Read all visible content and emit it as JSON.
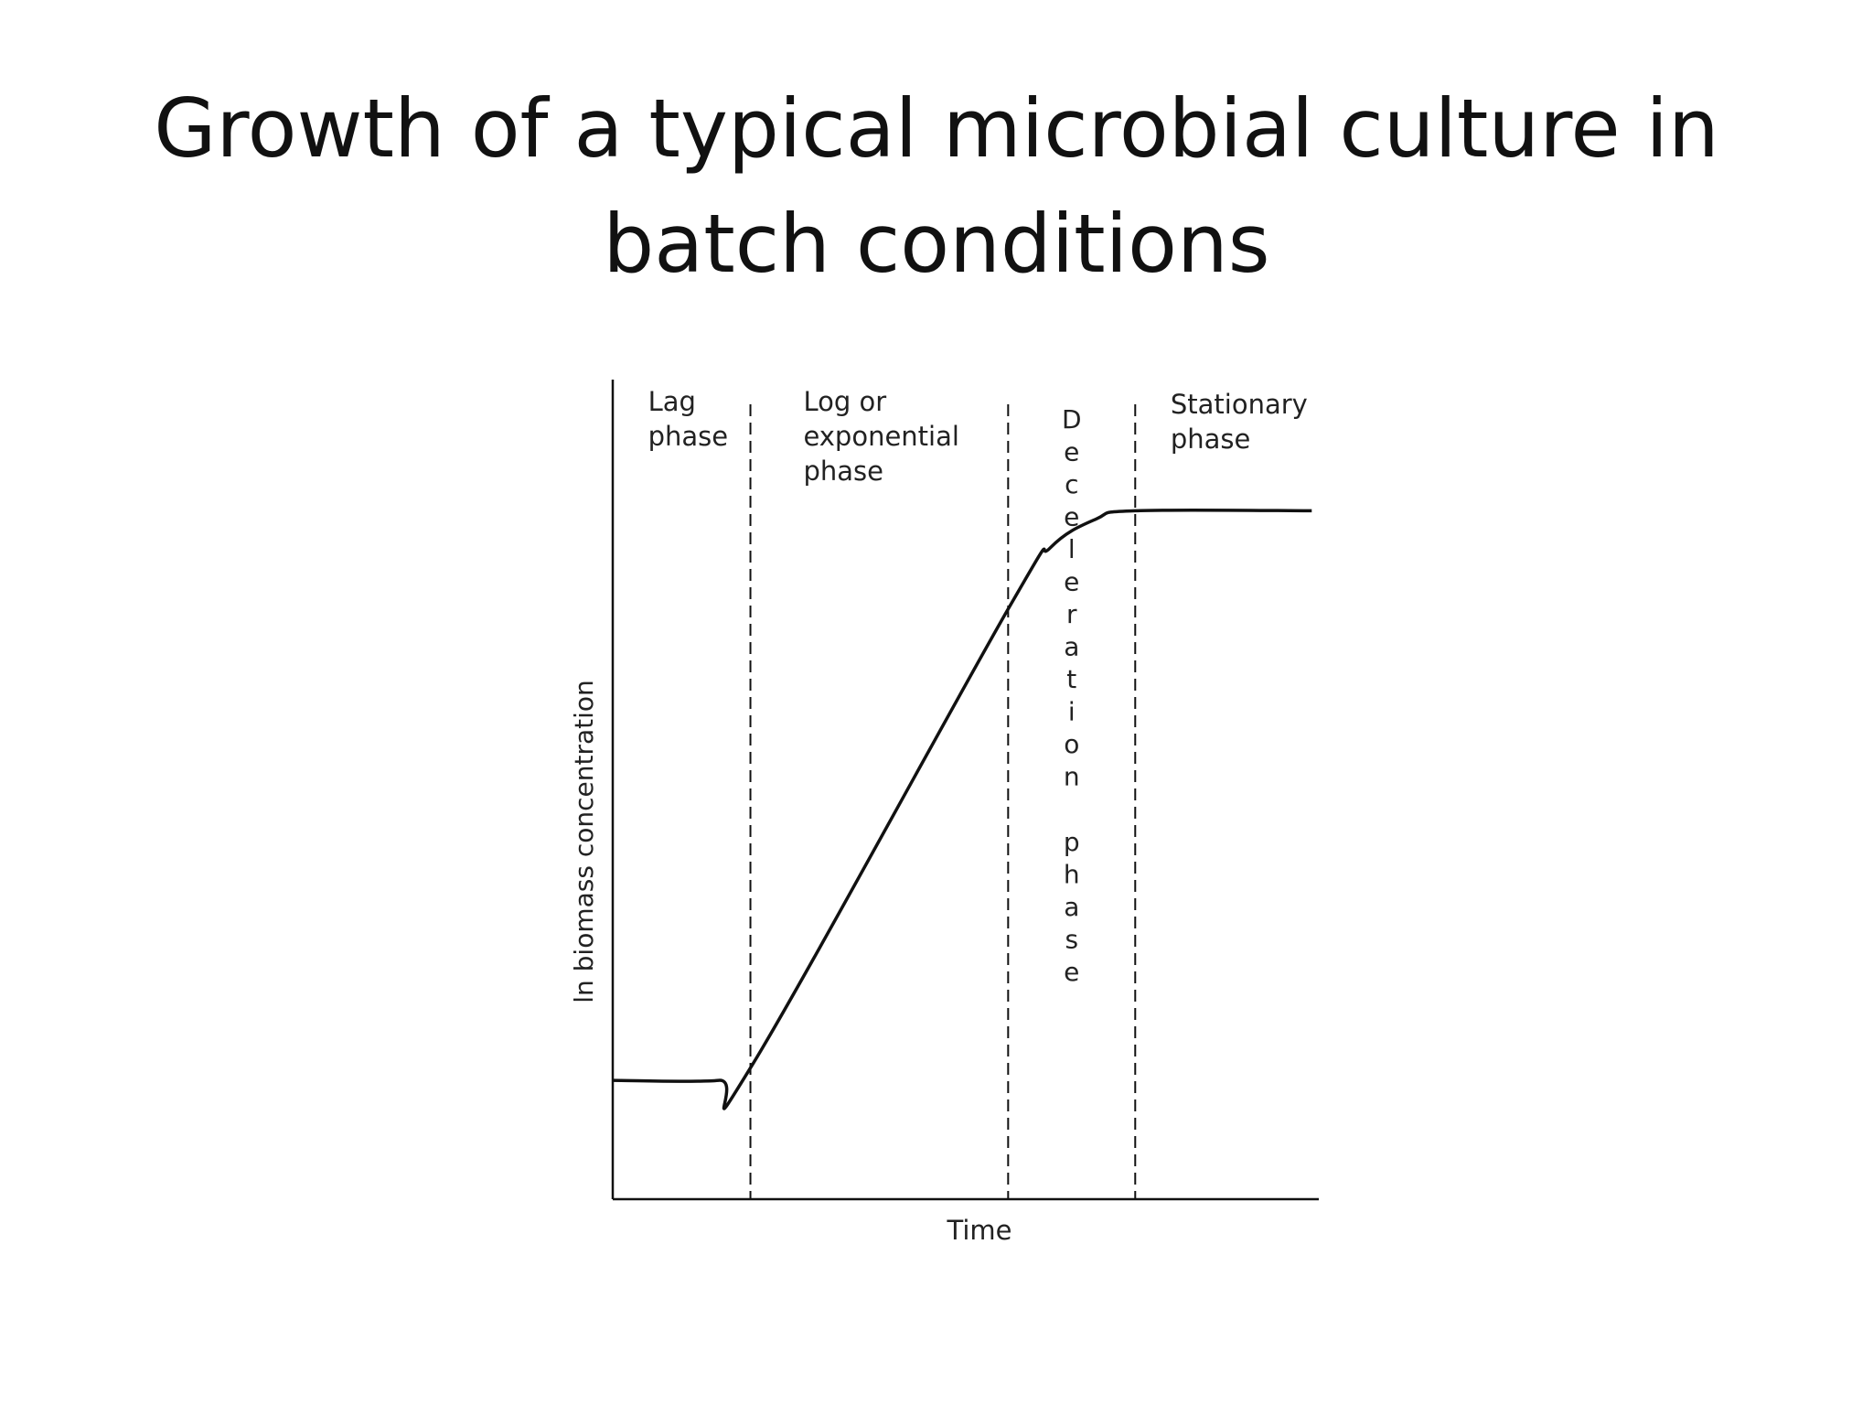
{
  "slide": {
    "title_line1": "Growth of a typical microbial culture in",
    "title_line2": "batch conditions"
  },
  "chart_data": {
    "type": "line",
    "title": "Growth of a typical microbial culture in batch conditions",
    "xlabel": "Time",
    "ylabel": "ln biomass concentration",
    "axis_ticks": false,
    "grid": false,
    "xlim": [
      0,
      10
    ],
    "ylim": [
      0,
      10
    ],
    "series": [
      {
        "points": [
          [
            0,
            1.45
          ],
          [
            1.5,
            1.45
          ],
          [
            1.95,
            1.6
          ],
          [
            5.6,
            7.2
          ],
          [
            6.2,
            7.95
          ],
          [
            6.85,
            8.3
          ],
          [
            7.4,
            8.4
          ],
          [
            9.9,
            8.4
          ]
        ]
      }
    ],
    "phase_boundaries": [
      1.95,
      5.6,
      7.4
    ],
    "phases": [
      {
        "label_lines": [
          "Lag",
          "phase"
        ],
        "x": 0.5
      },
      {
        "label_lines": [
          "Log  or",
          "exponential",
          "phase"
        ],
        "x": 2.7
      },
      {
        "label_vertical": "Deceleration phase",
        "x": 6.5
      },
      {
        "label_lines": [
          "Stationary",
          "phase"
        ],
        "x": 7.9
      }
    ]
  }
}
